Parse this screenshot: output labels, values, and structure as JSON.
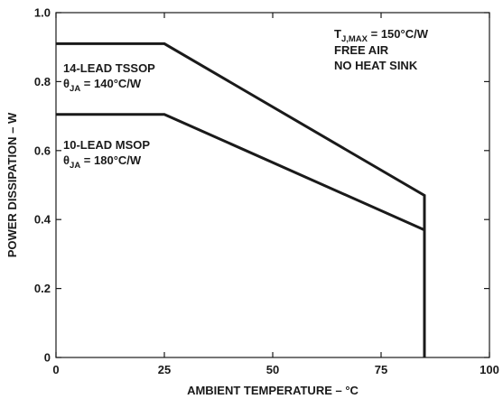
{
  "chart_data": {
    "type": "line",
    "xlabel": "AMBIENT TEMPERATURE – °C",
    "ylabel": "POWER DISSIPATION – W",
    "xlim": [
      0,
      100
    ],
    "ylim": [
      0,
      1.0
    ],
    "x_ticks": [
      "0",
      "25",
      "50",
      "75",
      "100"
    ],
    "y_ticks": [
      "0",
      "0.2",
      "0.4",
      "0.6",
      "0.8",
      "1.0"
    ],
    "grid": false,
    "series": [
      {
        "name": "14-LEAD TSSOP",
        "theta_prefix": "θ",
        "theta_sub": "JA",
        "theta_value": " = 140°C/W",
        "x": [
          0,
          25,
          85,
          85
        ],
        "y": [
          0.91,
          0.91,
          0.47,
          0
        ]
      },
      {
        "name": "10-LEAD MSOP",
        "theta_prefix": "θ",
        "theta_sub": "JA",
        "theta_value": " = 180°C/W",
        "x": [
          0,
          25,
          85,
          85
        ],
        "y": [
          0.705,
          0.705,
          0.37,
          0
        ]
      }
    ],
    "annotation": {
      "tj_prefix": "T",
      "tj_sub": "J,MAX",
      "tj_value": " = 150°C/W",
      "line2": "FREE AIR",
      "line3": "NO HEAT SINK"
    }
  }
}
